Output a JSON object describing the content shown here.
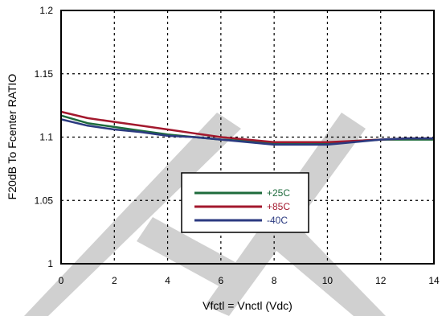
{
  "chart_data": {
    "type": "line",
    "title": "",
    "xlabel": "Vfctl = Vnctl (Vdc)",
    "ylabel": "F20dB To Fcenter RATIO",
    "xlim": [
      0,
      14
    ],
    "ylim": [
      1,
      1.2
    ],
    "xticks": [
      0,
      2,
      4,
      6,
      8,
      10,
      12,
      14
    ],
    "yticks": [
      1,
      1.05,
      1.1,
      1.15,
      1.2
    ],
    "ytick_labels": [
      "1",
      "1.05",
      "1.1",
      "1.15",
      "1.2"
    ],
    "grid": true,
    "legend_position": "center",
    "watermark": "TI",
    "series": [
      {
        "name": "+25C",
        "color": "#1e6b3c",
        "x": [
          0,
          1,
          2,
          3,
          4,
          5,
          6,
          7,
          8,
          9,
          10,
          11,
          12,
          13,
          14
        ],
        "y": [
          1.117,
          1.111,
          1.108,
          1.105,
          1.102,
          1.1,
          1.098,
          1.097,
          1.095,
          1.095,
          1.095,
          1.097,
          1.098,
          1.098,
          1.098
        ]
      },
      {
        "name": "+85C",
        "color": "#a3182d",
        "x": [
          0,
          1,
          2,
          3,
          4,
          5,
          6,
          7,
          8,
          9,
          10,
          11,
          12,
          13,
          14
        ],
        "y": [
          1.12,
          1.115,
          1.112,
          1.109,
          1.106,
          1.103,
          1.1,
          1.098,
          1.096,
          1.096,
          1.096,
          1.097,
          1.098,
          1.099,
          1.099
        ]
      },
      {
        "name": "-40C",
        "color": "#2b3a80",
        "x": [
          0,
          1,
          2,
          3,
          4,
          5,
          6,
          7,
          8,
          9,
          10,
          11,
          12,
          13,
          14
        ],
        "y": [
          1.114,
          1.109,
          1.106,
          1.104,
          1.101,
          1.1,
          1.098,
          1.096,
          1.094,
          1.094,
          1.094,
          1.096,
          1.098,
          1.099,
          1.099
        ]
      }
    ]
  }
}
